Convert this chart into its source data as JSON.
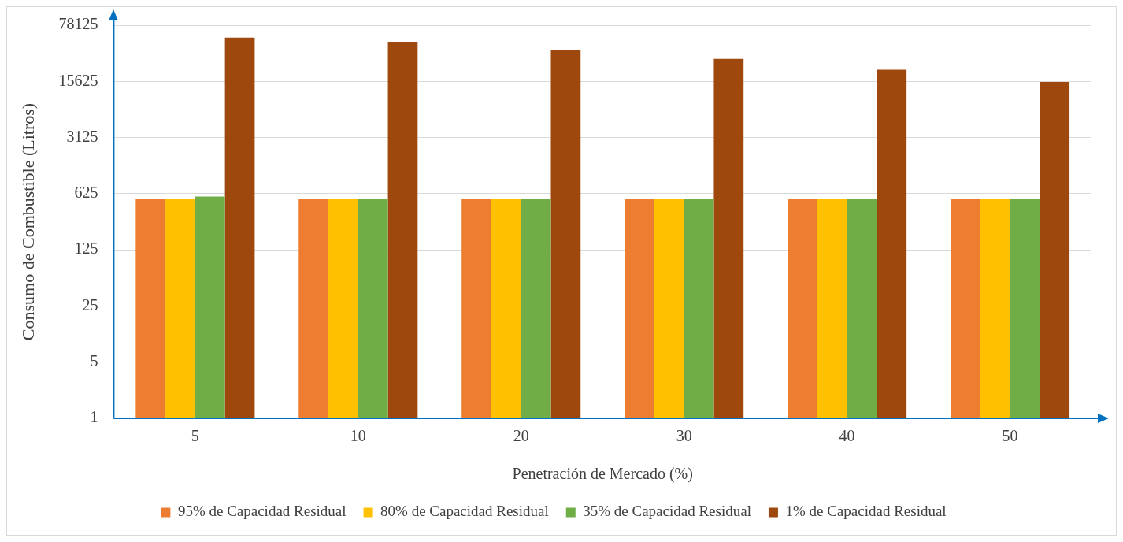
{
  "chart_data": {
    "type": "bar",
    "xlabel": "Penetración de Mercado (%)",
    "ylabel": "Consumo de Combustible (Litros)",
    "categories": [
      "5",
      "10",
      "20",
      "30",
      "40",
      "50"
    ],
    "series": [
      {
        "name": "95% de Capacidad Residual",
        "color": "#ed7d31",
        "values": [
          540,
          540,
          540,
          540,
          540,
          540
        ]
      },
      {
        "name": "80% de Capacidad Residual",
        "color": "#ffc000",
        "values": [
          540,
          540,
          540,
          540,
          540,
          540
        ]
      },
      {
        "name": "35% de Capacidad Residual",
        "color": "#70ad47",
        "values": [
          575,
          540,
          540,
          540,
          540,
          540
        ]
      },
      {
        "name": "1% de Capacidad Residual",
        "color": "#9e480e",
        "values": [
          54600,
          48500,
          38300,
          29700,
          21800,
          15400
        ]
      }
    ],
    "log": "y",
    "ylim": [
      1,
      78125
    ],
    "yticks": [
      1,
      5,
      25,
      125,
      625,
      3125,
      15625,
      78125
    ],
    "grid": "y",
    "legend": "bottom"
  }
}
